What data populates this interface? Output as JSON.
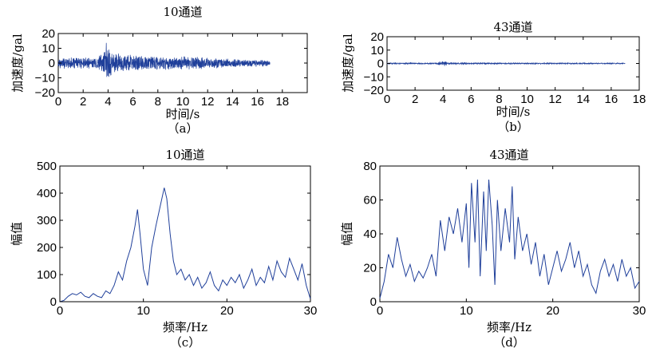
{
  "colors": {
    "series": "#1f3f9a",
    "axis": "#000000"
  },
  "chart_data": [
    {
      "type": "line",
      "title": "10通道",
      "xlabel": "时间/s",
      "ylabel": "加速度/gal",
      "caption": "（a）",
      "xlim": [
        0,
        20
      ],
      "ylim": [
        -20,
        20
      ],
      "xticks": [
        "0",
        "2",
        "4",
        "6",
        "8",
        "10",
        "12",
        "14",
        "16",
        "18"
      ],
      "yticks": [
        "−20",
        "−10",
        "0",
        "10",
        "20"
      ],
      "xtick_values": [
        0,
        2,
        4,
        6,
        8,
        10,
        12,
        14,
        16,
        18
      ],
      "ytick_values": [
        -20,
        -10,
        0,
        10,
        20
      ],
      "grid": false,
      "series": [
        {
          "signal": "acceleration time history",
          "x_range": [
            0,
            17
          ],
          "envelope": [
            [
              0,
              4
            ],
            [
              1,
              4
            ],
            [
              2,
              4
            ],
            [
              3,
              4
            ],
            [
              3.7,
              9
            ],
            [
              3.9,
              17
            ],
            [
              4.1,
              11
            ],
            [
              4.5,
              8
            ],
            [
              5,
              7
            ],
            [
              6,
              6
            ],
            [
              8,
              5
            ],
            [
              10,
              5
            ],
            [
              12,
              4
            ],
            [
              14,
              3
            ],
            [
              16,
              2.5
            ],
            [
              17,
              2
            ]
          ]
        }
      ]
    },
    {
      "type": "line",
      "title": "43通道",
      "xlabel": "时间/s",
      "ylabel": "加速度/gal",
      "caption": "（b）",
      "xlim": [
        0,
        18
      ],
      "ylim": [
        -20,
        20
      ],
      "xticks": [
        "0",
        "2",
        "4",
        "6",
        "8",
        "10",
        "12",
        "14",
        "16",
        "18"
      ],
      "yticks": [
        "−20",
        "−10",
        "0",
        "10",
        "20"
      ],
      "xtick_values": [
        0,
        2,
        4,
        6,
        8,
        10,
        12,
        14,
        16,
        18
      ],
      "ytick_values": [
        -20,
        -10,
        0,
        10,
        20
      ],
      "grid": false,
      "series": [
        {
          "signal": "acceleration time history",
          "x_range": [
            0,
            17
          ],
          "envelope": [
            [
              0,
              0.5
            ],
            [
              3.5,
              0.5
            ],
            [
              3.8,
              2
            ],
            [
              4.0,
              2.5
            ],
            [
              4.4,
              1
            ],
            [
              6,
              0.6
            ],
            [
              17,
              0.4
            ]
          ]
        }
      ]
    },
    {
      "type": "line",
      "title": "10通道",
      "xlabel": "频率/Hz",
      "ylabel": "幅值",
      "caption": "（c）",
      "xlim": [
        0,
        30
      ],
      "ylim": [
        0,
        500
      ],
      "xticks": [
        "0",
        "10",
        "20",
        "30"
      ],
      "yticks": [
        "0",
        "100",
        "200",
        "300",
        "400",
        "500"
      ],
      "xtick_values": [
        0,
        10,
        20,
        30
      ],
      "ytick_values": [
        0,
        100,
        200,
        300,
        400,
        500
      ],
      "grid": false,
      "series": [
        {
          "x": [
            0,
            0.5,
            1,
            1.5,
            2,
            2.5,
            3,
            3.5,
            4,
            4.5,
            5,
            5.5,
            6,
            6.5,
            7,
            7.5,
            8,
            8.5,
            9,
            9.3,
            9.6,
            10,
            10.5,
            11,
            11.5,
            12,
            12.5,
            12.8,
            13.2,
            13.6,
            14,
            14.5,
            15,
            15.5,
            16,
            16.5,
            17,
            17.5,
            18,
            18.5,
            19,
            19.5,
            20,
            20.5,
            21,
            21.5,
            22,
            22.5,
            23,
            23.5,
            24,
            24.5,
            25,
            25.5,
            26,
            26.5,
            27,
            27.5,
            28,
            28.5,
            29,
            29.5,
            30
          ],
          "values": [
            0,
            5,
            20,
            30,
            25,
            35,
            20,
            15,
            30,
            20,
            15,
            40,
            30,
            60,
            110,
            80,
            150,
            200,
            280,
            340,
            250,
            120,
            60,
            200,
            280,
            350,
            420,
            380,
            250,
            150,
            100,
            120,
            80,
            100,
            60,
            90,
            50,
            70,
            110,
            60,
            40,
            80,
            60,
            90,
            70,
            100,
            50,
            80,
            120,
            60,
            90,
            70,
            130,
            80,
            150,
            110,
            90,
            160,
            120,
            80,
            140,
            60,
            10
          ]
        }
      ]
    },
    {
      "type": "line",
      "title": "43通道",
      "xlabel": "频率/Hz",
      "ylabel": "幅值",
      "caption": "（d）",
      "xlim": [
        0,
        30
      ],
      "ylim": [
        0,
        80
      ],
      "xticks": [
        "0",
        "10",
        "20",
        "30"
      ],
      "yticks": [
        "0",
        "20",
        "40",
        "60",
        "80"
      ],
      "xtick_values": [
        0,
        10,
        20,
        30
      ],
      "ytick_values": [
        0,
        20,
        40,
        60,
        80
      ],
      "grid": false,
      "series": [
        {
          "x": [
            0,
            0.5,
            1,
            1.5,
            2,
            2.5,
            3,
            3.5,
            4,
            4.5,
            5,
            5.5,
            6,
            6.5,
            7,
            7.5,
            8,
            8.5,
            9,
            9.5,
            10,
            10.3,
            10.6,
            11,
            11.3,
            11.6,
            12,
            12.3,
            12.6,
            13,
            13.3,
            13.6,
            14,
            14.5,
            15,
            15.3,
            15.6,
            16,
            16.5,
            17,
            17.5,
            18,
            18.5,
            19,
            19.5,
            20,
            20.5,
            21,
            21.5,
            22,
            22.5,
            23,
            23.5,
            24,
            24.5,
            25,
            25.5,
            26,
            26.5,
            27,
            27.5,
            28,
            28.5,
            29,
            29.5,
            30
          ],
          "values": [
            2,
            12,
            28,
            20,
            38,
            25,
            15,
            22,
            12,
            18,
            14,
            20,
            28,
            15,
            48,
            30,
            50,
            40,
            55,
            35,
            58,
            20,
            70,
            35,
            72,
            15,
            65,
            30,
            72,
            45,
            10,
            60,
            30,
            55,
            35,
            68,
            25,
            50,
            30,
            40,
            22,
            35,
            15,
            28,
            10,
            20,
            30,
            18,
            25,
            35,
            20,
            30,
            15,
            22,
            10,
            5,
            18,
            25,
            15,
            22,
            12,
            25,
            15,
            20,
            8,
            12
          ]
        }
      ]
    }
  ]
}
